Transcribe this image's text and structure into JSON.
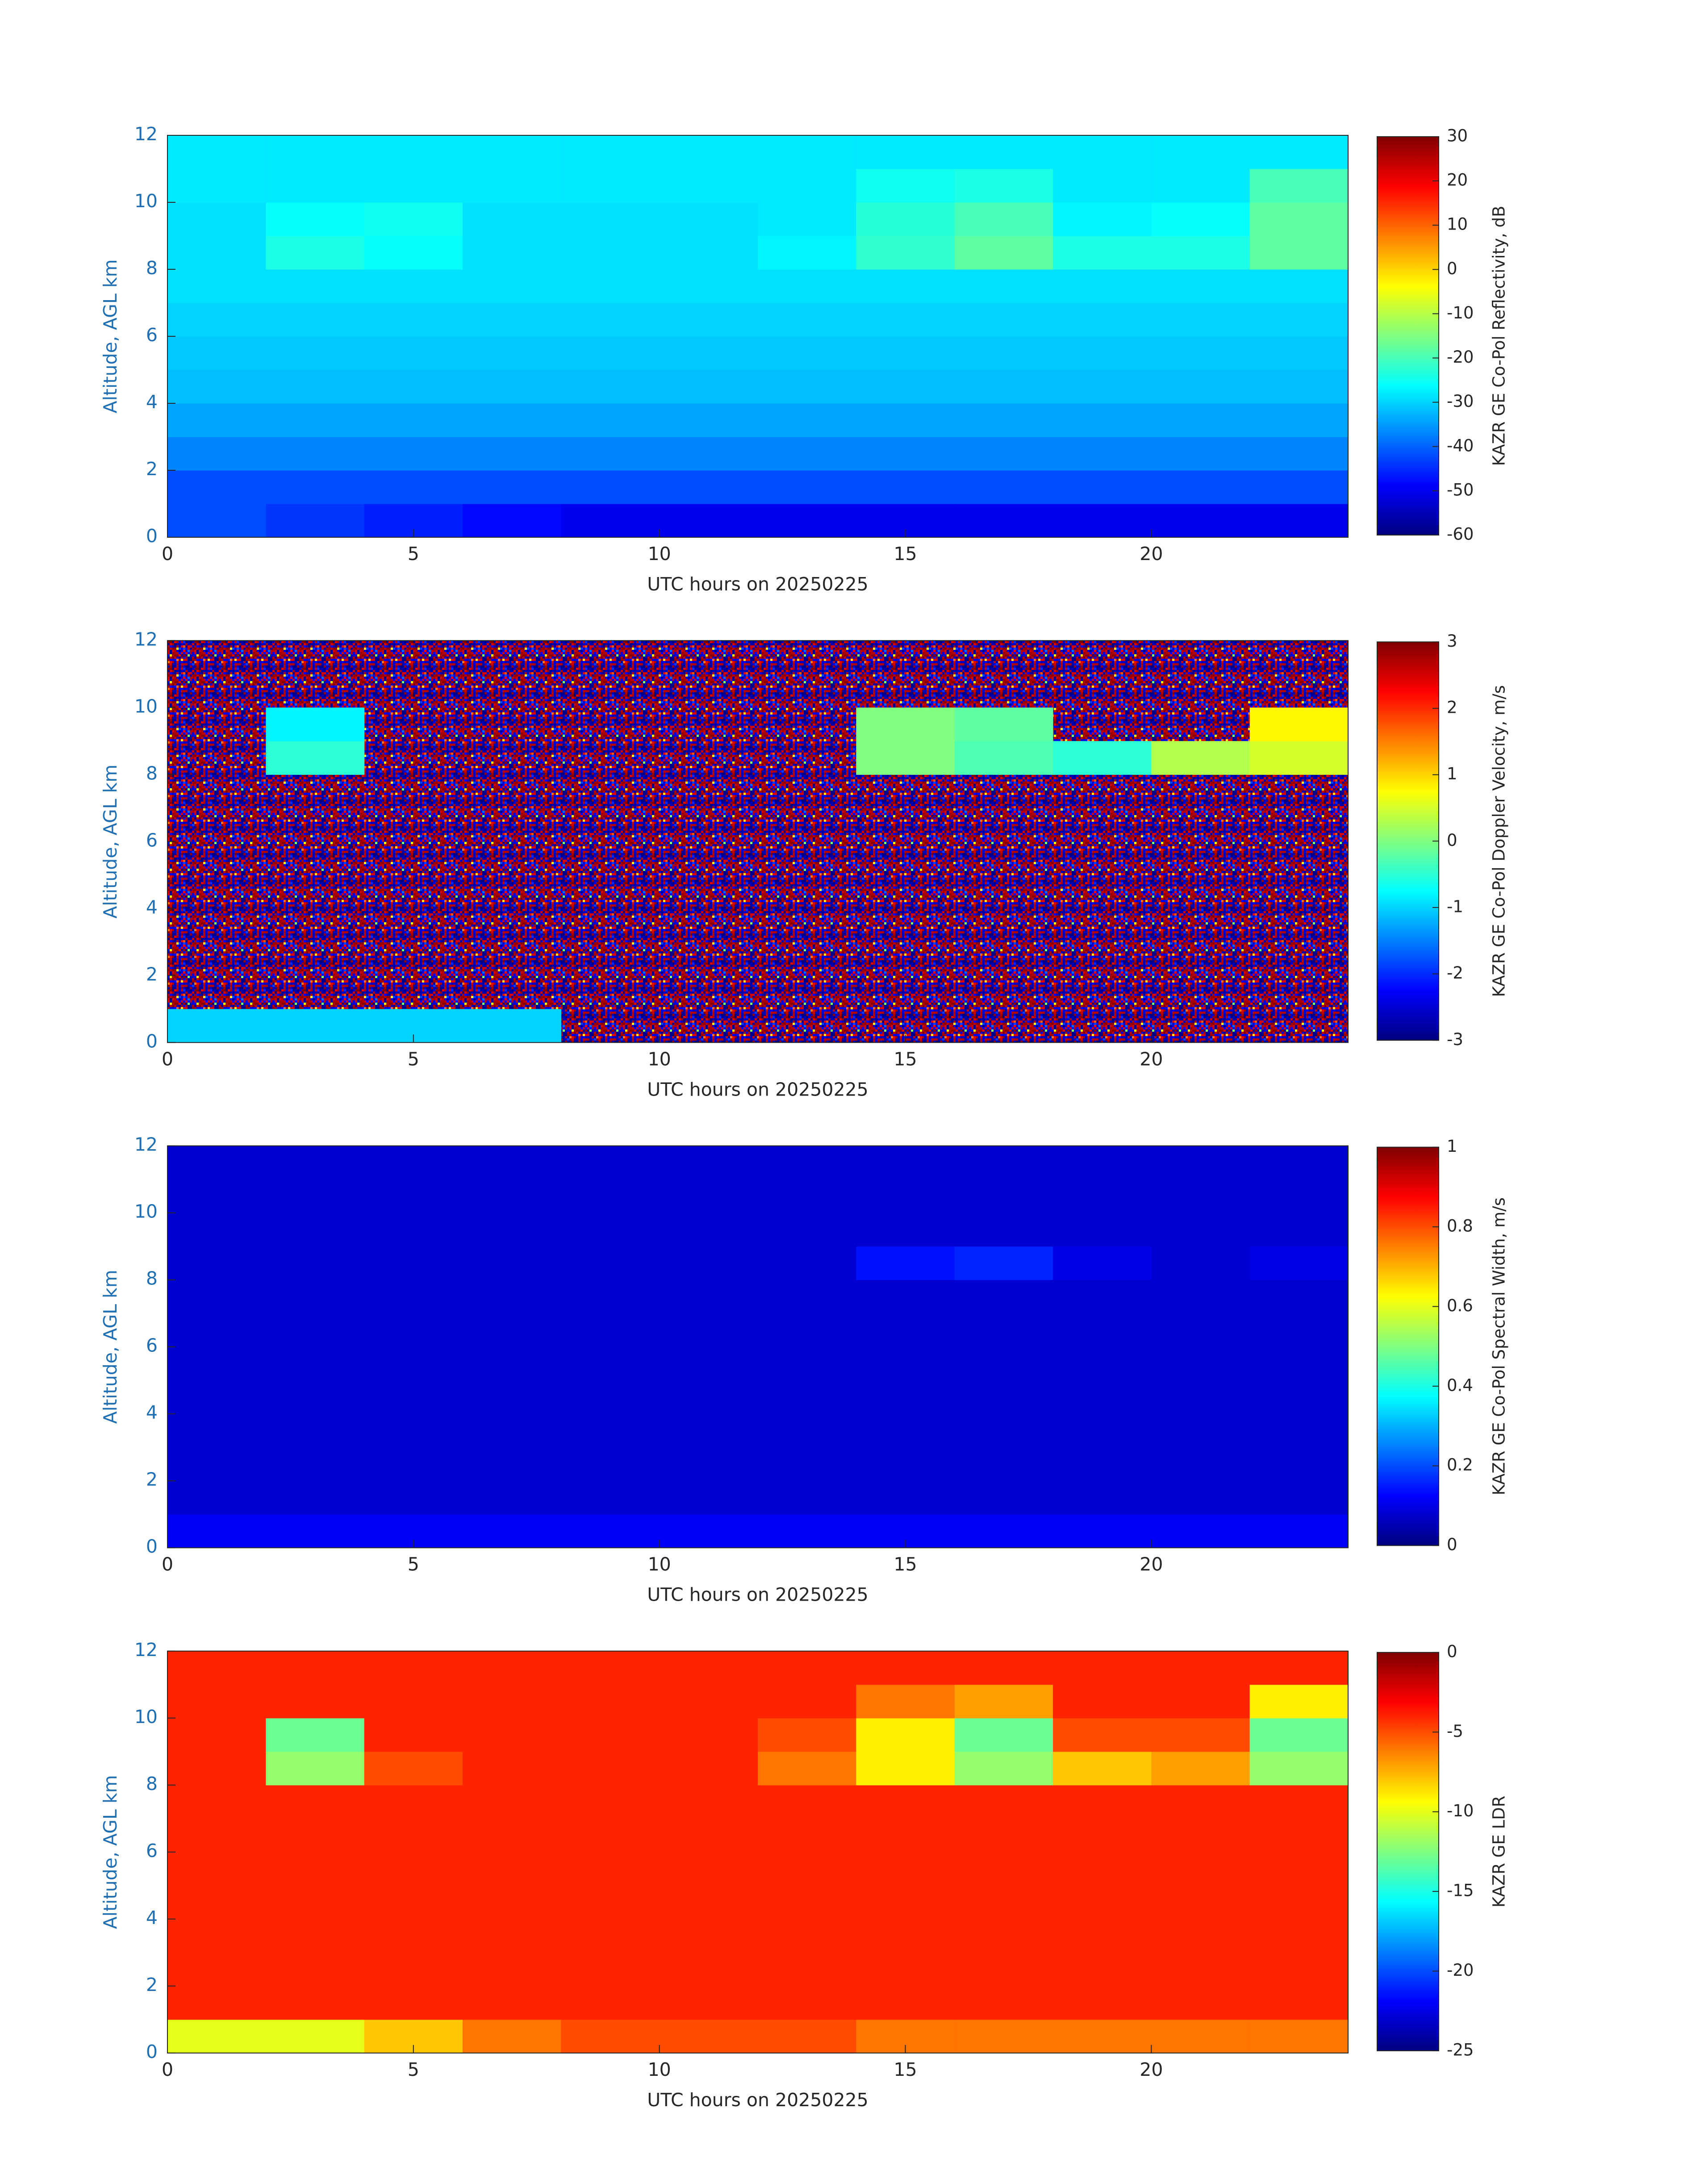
{
  "chart_data": [
    {
      "type": "heatmap",
      "xlabel": "UTC hours on 20250225",
      "ylabel": "Altitude, AGL km",
      "colorbar_label": "KAZR GE Co-Pol Reflectivity, dB",
      "xlim": [
        0,
        24
      ],
      "ylim": [
        0,
        12
      ],
      "xticks": [
        0,
        5,
        10,
        15,
        20
      ],
      "yticks": [
        0,
        2,
        4,
        6,
        8,
        10,
        12
      ],
      "clim": [
        -60,
        30
      ],
      "cticks": [
        -60,
        -50,
        -40,
        -30,
        -20,
        -10,
        0,
        10,
        20,
        30
      ],
      "colormap": "jet",
      "xbins": [
        0,
        2,
        4,
        6,
        8,
        10,
        12,
        14,
        16,
        18,
        20,
        22,
        24
      ],
      "ybins": [
        0,
        1,
        2,
        3,
        4,
        5,
        6,
        7,
        8,
        9,
        10,
        11,
        12
      ],
      "z": [
        [
          -42,
          -44,
          -46,
          -48,
          -50,
          -50,
          -50,
          -50,
          -50,
          -50,
          -50,
          -50
        ],
        [
          -42,
          -42,
          -42,
          -42,
          -42,
          -42,
          -42,
          -42,
          -42,
          -42,
          -42,
          -42
        ],
        [
          -37,
          -37,
          -37,
          -37,
          -37,
          -37,
          -37,
          -37,
          -37,
          -37,
          -37,
          -37
        ],
        [
          -34,
          -34,
          -34,
          -34,
          -34,
          -34,
          -34,
          -34,
          -34,
          -34,
          -34,
          -34
        ],
        [
          -32,
          -32,
          -32,
          -32,
          -32,
          -32,
          -32,
          -32,
          -32,
          -32,
          -32,
          -32
        ],
        [
          -31,
          -31,
          -31,
          -31,
          -31,
          -31,
          -31,
          -31,
          -31,
          -31,
          -31,
          -31
        ],
        [
          -30,
          -30,
          -30,
          -30,
          -30,
          -30,
          -30,
          -30,
          -30,
          -30,
          -30,
          -30
        ],
        [
          -29,
          -29,
          -29,
          -29,
          -29,
          -29,
          -29,
          -29,
          -29,
          -29,
          -29,
          -29
        ],
        [
          -29,
          -24,
          -26,
          -29,
          -29,
          -29,
          -27,
          -22,
          -18,
          -24,
          -24,
          -18
        ],
        [
          -29,
          -26,
          -25,
          -29,
          -29,
          -29,
          -28,
          -23,
          -20,
          -27,
          -26,
          -18
        ],
        [
          -28,
          -28,
          -28,
          -28,
          -28,
          -28,
          -28,
          -25,
          -24,
          -28,
          -28,
          -20
        ],
        [
          -28,
          -28,
          -28,
          -28,
          -28,
          -28,
          -28,
          -28,
          -28,
          -28,
          -28,
          -28
        ]
      ]
    },
    {
      "type": "heatmap",
      "xlabel": "UTC hours on 20250225",
      "ylabel": "Altitude, AGL km",
      "colorbar_label": "KAZR GE Co-Pol Doppler Velocity, m/s",
      "xlim": [
        0,
        24
      ],
      "ylim": [
        0,
        12
      ],
      "xticks": [
        0,
        5,
        10,
        15,
        20
      ],
      "yticks": [
        0,
        2,
        4,
        6,
        8,
        10,
        12
      ],
      "clim": [
        -3,
        3
      ],
      "cticks": [
        -3,
        -2,
        -1,
        0,
        1,
        2,
        3
      ],
      "colormap": "jet",
      "xbins": [
        0,
        2,
        4,
        6,
        8,
        10,
        12,
        14,
        16,
        18,
        20,
        22,
        24
      ],
      "ybins": [
        0,
        1,
        2,
        3,
        4,
        5,
        6,
        7,
        8,
        9,
        10,
        11,
        12
      ],
      "z": [
        [
          -1,
          -1,
          -1,
          -1,
          null,
          null,
          null,
          null,
          null,
          null,
          null,
          null
        ],
        [
          null,
          null,
          null,
          null,
          null,
          null,
          null,
          null,
          null,
          null,
          null,
          null
        ],
        [
          null,
          null,
          null,
          null,
          null,
          null,
          null,
          null,
          null,
          null,
          null,
          null
        ],
        [
          null,
          null,
          null,
          null,
          null,
          null,
          null,
          null,
          null,
          null,
          null,
          null
        ],
        [
          null,
          null,
          null,
          null,
          null,
          null,
          null,
          null,
          null,
          null,
          null,
          null
        ],
        [
          null,
          null,
          null,
          null,
          null,
          null,
          null,
          null,
          null,
          null,
          null,
          null
        ],
        [
          null,
          null,
          null,
          null,
          null,
          null,
          null,
          null,
          null,
          null,
          null,
          null
        ],
        [
          null,
          null,
          null,
          null,
          null,
          null,
          null,
          null,
          null,
          null,
          null,
          null
        ],
        [
          null,
          -0.5,
          null,
          null,
          null,
          null,
          null,
          0,
          -0.3,
          -0.5,
          0.3,
          0.5
        ],
        [
          null,
          -0.8,
          null,
          null,
          null,
          null,
          null,
          0,
          -0.2,
          null,
          null,
          0.8
        ],
        [
          null,
          null,
          null,
          null,
          null,
          null,
          null,
          null,
          null,
          null,
          null,
          null
        ],
        [
          null,
          null,
          null,
          null,
          null,
          null,
          null,
          null,
          null,
          null,
          null,
          null
        ]
      ]
    },
    {
      "type": "heatmap",
      "xlabel": "UTC hours on 20250225",
      "ylabel": "Altitude, AGL km",
      "colorbar_label": "KAZR GE Co-Pol Spectral Width, m/s",
      "xlim": [
        0,
        24
      ],
      "ylim": [
        0,
        12
      ],
      "xticks": [
        0,
        5,
        10,
        15,
        20
      ],
      "yticks": [
        0,
        2,
        4,
        6,
        8,
        10,
        12
      ],
      "clim": [
        0,
        1
      ],
      "cticks": [
        0,
        0.2,
        0.4,
        0.6,
        0.8,
        1
      ],
      "colormap": "jet",
      "xbins": [
        0,
        2,
        4,
        6,
        8,
        10,
        12,
        14,
        16,
        18,
        20,
        22,
        24
      ],
      "ybins": [
        0,
        1,
        2,
        3,
        4,
        5,
        6,
        7,
        8,
        9,
        10,
        11,
        12
      ],
      "z": [
        [
          0.12,
          0.12,
          0.12,
          0.12,
          0.12,
          0.12,
          0.12,
          0.12,
          0.12,
          0.12,
          0.12,
          0.12
        ],
        [
          0.08,
          0.08,
          0.08,
          0.08,
          0.08,
          0.08,
          0.08,
          0.08,
          0.08,
          0.08,
          0.08,
          0.08
        ],
        [
          0.08,
          0.08,
          0.08,
          0.08,
          0.08,
          0.08,
          0.08,
          0.08,
          0.08,
          0.08,
          0.08,
          0.08
        ],
        [
          0.08,
          0.08,
          0.08,
          0.08,
          0.08,
          0.08,
          0.08,
          0.08,
          0.08,
          0.08,
          0.08,
          0.08
        ],
        [
          0.08,
          0.08,
          0.08,
          0.08,
          0.08,
          0.08,
          0.08,
          0.08,
          0.08,
          0.08,
          0.08,
          0.08
        ],
        [
          0.08,
          0.08,
          0.08,
          0.08,
          0.08,
          0.08,
          0.08,
          0.08,
          0.08,
          0.08,
          0.08,
          0.08
        ],
        [
          0.08,
          0.08,
          0.08,
          0.08,
          0.08,
          0.08,
          0.08,
          0.08,
          0.08,
          0.08,
          0.08,
          0.08
        ],
        [
          0.08,
          0.08,
          0.08,
          0.08,
          0.08,
          0.08,
          0.08,
          0.08,
          0.08,
          0.08,
          0.08,
          0.08
        ],
        [
          0.08,
          0.08,
          0.08,
          0.08,
          0.08,
          0.08,
          0.08,
          0.14,
          0.16,
          0.1,
          0.08,
          0.1
        ],
        [
          0.08,
          0.08,
          0.08,
          0.08,
          0.08,
          0.08,
          0.08,
          0.08,
          0.08,
          0.08,
          0.08,
          0.08
        ],
        [
          0.08,
          0.08,
          0.08,
          0.08,
          0.08,
          0.08,
          0.08,
          0.08,
          0.08,
          0.08,
          0.08,
          0.08
        ],
        [
          0.08,
          0.08,
          0.08,
          0.08,
          0.08,
          0.08,
          0.08,
          0.08,
          0.08,
          0.08,
          0.08,
          0.08
        ]
      ]
    },
    {
      "type": "heatmap",
      "xlabel": "UTC hours on 20250225",
      "ylabel": "Altitude, AGL km",
      "colorbar_label": "KAZR GE LDR",
      "xlim": [
        0,
        24
      ],
      "ylim": [
        0,
        12
      ],
      "xticks": [
        0,
        5,
        10,
        15,
        20
      ],
      "yticks": [
        0,
        2,
        4,
        6,
        8,
        10,
        12
      ],
      "clim": [
        -25,
        0
      ],
      "cticks": [
        -25,
        -20,
        -15,
        -10,
        -5,
        0
      ],
      "colormap": "jet",
      "xbins": [
        0,
        2,
        4,
        6,
        8,
        10,
        12,
        14,
        16,
        18,
        20,
        22,
        24
      ],
      "ybins": [
        0,
        1,
        2,
        3,
        4,
        5,
        6,
        7,
        8,
        9,
        10,
        11,
        12
      ],
      "z": [
        [
          -10,
          -10,
          -8,
          -6,
          -5,
          -5,
          -5,
          -6,
          -6,
          -6,
          -6,
          -6
        ],
        [
          -4,
          -4,
          -4,
          -4,
          -4,
          -4,
          -4,
          -4,
          -4,
          -4,
          -4,
          -4
        ],
        [
          -4,
          -4,
          -4,
          -4,
          -4,
          -4,
          -4,
          -4,
          -4,
          -4,
          -4,
          -4
        ],
        [
          -4,
          -4,
          -4,
          -4,
          -4,
          -4,
          -4,
          -4,
          -4,
          -4,
          -4,
          -4
        ],
        [
          -4,
          -4,
          -4,
          -4,
          -4,
          -4,
          -4,
          -4,
          -4,
          -4,
          -4,
          -4
        ],
        [
          -4,
          -4,
          -4,
          -4,
          -4,
          -4,
          -4,
          -4,
          -4,
          -4,
          -4,
          -4
        ],
        [
          -4,
          -4,
          -4,
          -4,
          -4,
          -4,
          -4,
          -4,
          -4,
          -4,
          -4,
          -4
        ],
        [
          -4,
          -4,
          -4,
          -4,
          -4,
          -4,
          -4,
          -4,
          -4,
          -4,
          -4,
          -4
        ],
        [
          -4,
          -12,
          -5,
          -4,
          -4,
          -4,
          -6,
          -9,
          -12,
          -8,
          -7,
          -12
        ],
        [
          -4,
          -13,
          -4,
          -4,
          -4,
          -4,
          -5,
          -9,
          -13,
          -5,
          -5,
          -13
        ],
        [
          -4,
          -4,
          -4,
          -4,
          -4,
          -4,
          -4,
          -6,
          -7,
          -4,
          -4,
          -9
        ],
        [
          -4,
          -4,
          -4,
          -4,
          -4,
          -4,
          -4,
          -4,
          -4,
          -4,
          -4,
          -4
        ]
      ]
    }
  ]
}
